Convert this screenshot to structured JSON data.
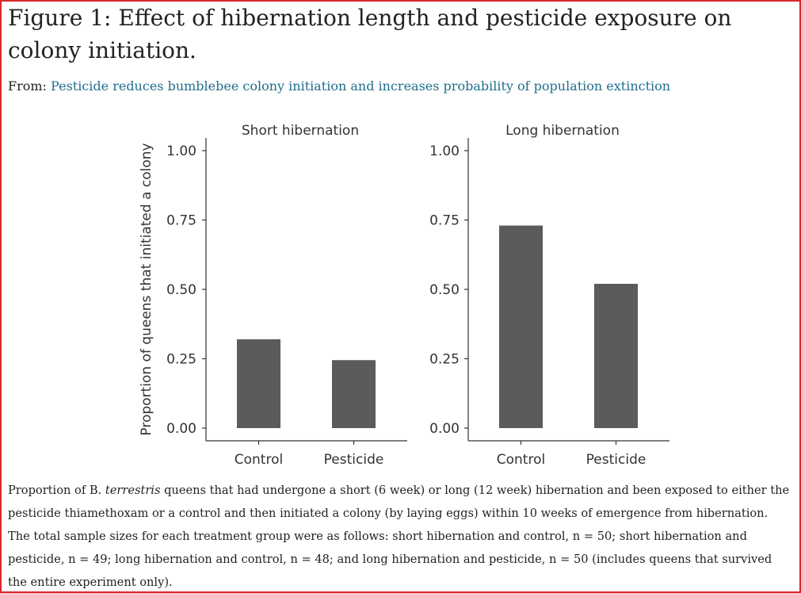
{
  "figure": {
    "title": "Figure 1: Effect of hibernation length and pesticide exposure on colony initiation.",
    "from_prefix": "From:",
    "from_link": "Pesticide reduces bumblebee colony initiation and increases probability of population extinction"
  },
  "chart_data": {
    "type": "bar",
    "ylabel": "Proportion of queens that initiated a colony",
    "ylim": [
      0,
      1
    ],
    "yticks": [
      "0.00",
      "0.25",
      "0.50",
      "0.75",
      "1.00"
    ],
    "ytick_values": [
      0,
      0.25,
      0.5,
      0.75,
      1.0
    ],
    "bar_color": "#5a5b5d",
    "panels": [
      {
        "title": "Short hibernation",
        "categories": [
          "Control",
          "Pesticide"
        ],
        "values": [
          0.32,
          0.245
        ]
      },
      {
        "title": "Long hibernation",
        "categories": [
          "Control",
          "Pesticide"
        ],
        "values": [
          0.73,
          0.52
        ]
      }
    ]
  },
  "caption": {
    "part1": "Proportion of B. ",
    "species": "terrestris",
    "part2": " queens that had undergone a short (6 week) or long (12 week) hibernation and been exposed to either the pesticide thiamethoxam or a control and then initiated a colony (by laying eggs) within 10 weeks of emergence from hibernation. The total sample sizes for each treatment group were as follows: short hibernation and control, n = 50; short hibernation and pesticide, n = 49; long hibernation and control, n = 48; and long hibernation and pesticide, n = 50 (includes queens that survived the entire experiment only)."
  },
  "colors": {
    "frame_border": "#d9282f",
    "link": "#1f6e8c"
  }
}
